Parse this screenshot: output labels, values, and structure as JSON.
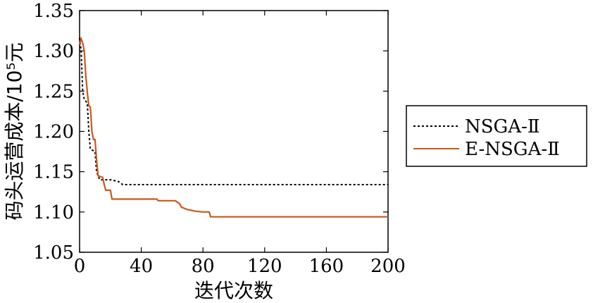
{
  "chart_data": {
    "type": "line",
    "xlabel": "迭代次数",
    "ylabel": "码头运营成本/10⁵元",
    "xlim": [
      0,
      200
    ],
    "ylim": [
      1.05,
      1.35
    ],
    "xticks": [
      "0",
      "40",
      "80",
      "120",
      "160",
      "200"
    ],
    "yticks": [
      "1.05",
      "1.10",
      "1.15",
      "1.20",
      "1.25",
      "1.30",
      "1.35"
    ],
    "grid": false,
    "legend": "right",
    "series": [
      {
        "name": "NSGA-Ⅱ",
        "style": "dotted",
        "color": "#000000",
        "points": [
          [
            0,
            1.316
          ],
          [
            1,
            1.3
          ],
          [
            2,
            1.25
          ],
          [
            3,
            1.24
          ],
          [
            5,
            1.235
          ],
          [
            6,
            1.2
          ],
          [
            7,
            1.178
          ],
          [
            10,
            1.175
          ],
          [
            11,
            1.15
          ],
          [
            13,
            1.14
          ],
          [
            15,
            1.14
          ],
          [
            20,
            1.14
          ],
          [
            25,
            1.138
          ],
          [
            28,
            1.134
          ],
          [
            50,
            1.134
          ],
          [
            100,
            1.134
          ],
          [
            150,
            1.134
          ],
          [
            200,
            1.134
          ]
        ]
      },
      {
        "name": "E-NSGA-Ⅱ",
        "style": "solid",
        "color": "#c8591e",
        "points": [
          [
            0,
            1.308
          ],
          [
            1,
            1.315
          ],
          [
            2,
            1.31
          ],
          [
            3,
            1.3
          ],
          [
            4,
            1.27
          ],
          [
            5,
            1.248
          ],
          [
            6,
            1.232
          ],
          [
            7,
            1.23
          ],
          [
            8,
            1.2
          ],
          [
            9,
            1.19
          ],
          [
            10,
            1.19
          ],
          [
            11,
            1.165
          ],
          [
            12,
            1.145
          ],
          [
            15,
            1.143
          ],
          [
            16,
            1.134
          ],
          [
            17,
            1.127
          ],
          [
            20,
            1.127
          ],
          [
            21,
            1.116
          ],
          [
            40,
            1.116
          ],
          [
            50,
            1.116
          ],
          [
            51,
            1.114
          ],
          [
            62,
            1.114
          ],
          [
            65,
            1.11
          ],
          [
            66,
            1.106
          ],
          [
            70,
            1.103
          ],
          [
            75,
            1.101
          ],
          [
            80,
            1.1
          ],
          [
            84,
            1.1
          ],
          [
            85,
            1.094
          ],
          [
            100,
            1.094
          ],
          [
            150,
            1.094
          ],
          [
            200,
            1.094
          ]
        ]
      }
    ]
  }
}
